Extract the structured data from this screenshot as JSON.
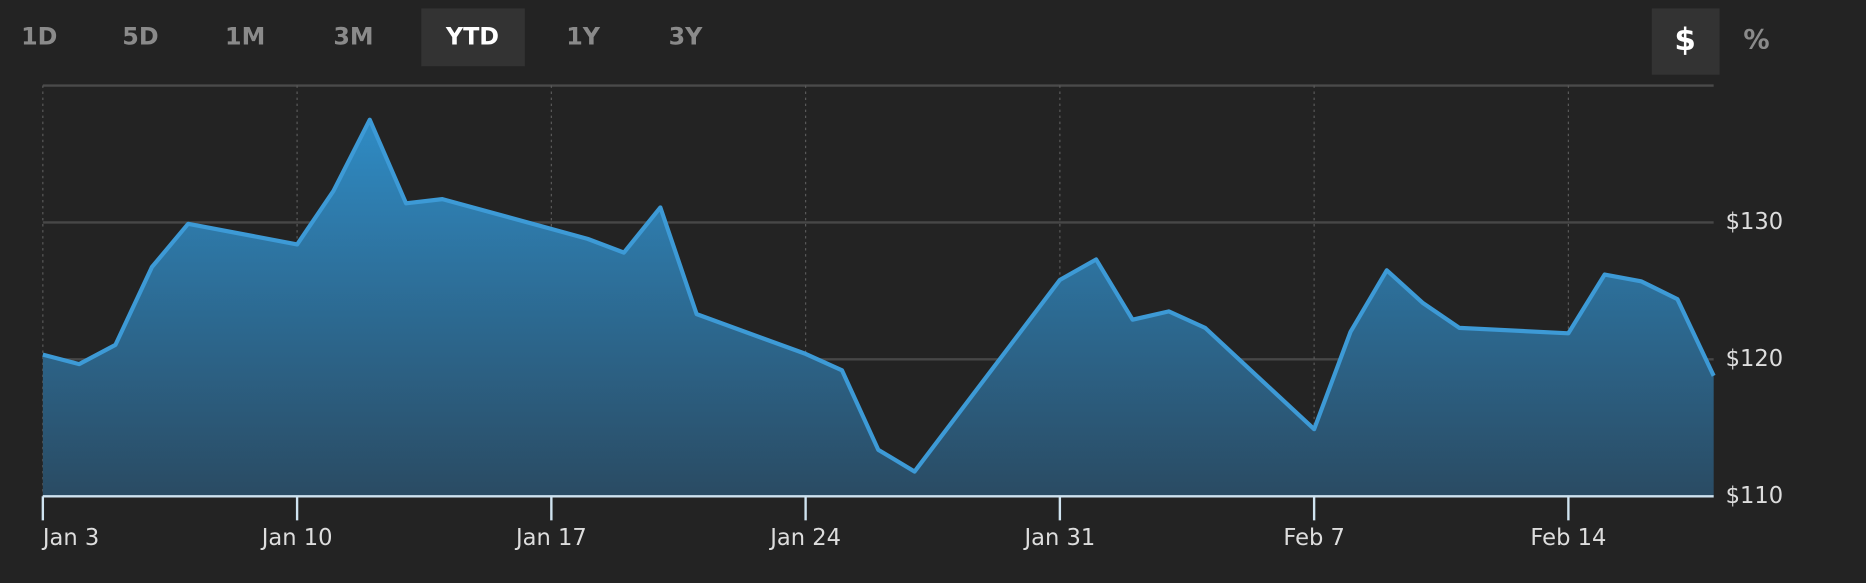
{
  "ui": {
    "ranges": [
      "1D",
      "5D",
      "1M",
      "3M",
      "YTD",
      "1Y",
      "3Y"
    ],
    "selected_range": "YTD",
    "modes": [
      "$",
      "%"
    ],
    "selected_mode": "$"
  },
  "chart_data": {
    "type": "area",
    "x": [
      "Jan 3",
      "Jan 4",
      "Jan 5",
      "Jan 6",
      "Jan 7",
      "Jan 10",
      "Jan 11",
      "Jan 12",
      "Jan 13",
      "Jan 14",
      "Jan 18",
      "Jan 19",
      "Jan 20",
      "Jan 21",
      "Jan 24",
      "Jan 25",
      "Jan 26",
      "Jan 27",
      "Jan 31",
      "Feb 1",
      "Feb 2",
      "Feb 3",
      "Feb 4",
      "Feb 7",
      "Feb 8",
      "Feb 9",
      "Feb 10",
      "Feb 11",
      "Feb 14",
      "Feb 15",
      "Feb 16",
      "Feb 17",
      "Feb 18"
    ],
    "series": [
      {
        "color": "#3d9ad6",
        "values": [
          120.35,
          119.65,
          121.06,
          126.73,
          129.9,
          128.4,
          132.3,
          137.5,
          131.4,
          131.7,
          128.8,
          127.8,
          131.1,
          123.3,
          120.4,
          119.2,
          113.4,
          111.8,
          125.8,
          127.3,
          122.9,
          123.5,
          122.3,
          114.9,
          122.0,
          126.5,
          124.1,
          122.3,
          121.9,
          126.2,
          125.7,
          124.4,
          118.8
        ]
      }
    ],
    "xlim": [
      "Jan 3",
      "Feb 18"
    ],
    "xticks": [
      "Jan 3",
      "Jan 10",
      "Jan 17",
      "Jan 24",
      "Jan 31",
      "Feb 7",
      "Feb 14"
    ],
    "ylim": [
      110,
      140
    ],
    "yticks": [
      {
        "value": 110,
        "label": "$110"
      },
      {
        "value": 120,
        "label": "$120"
      },
      {
        "value": 130,
        "label": "$130"
      }
    ],
    "grid": true
  }
}
